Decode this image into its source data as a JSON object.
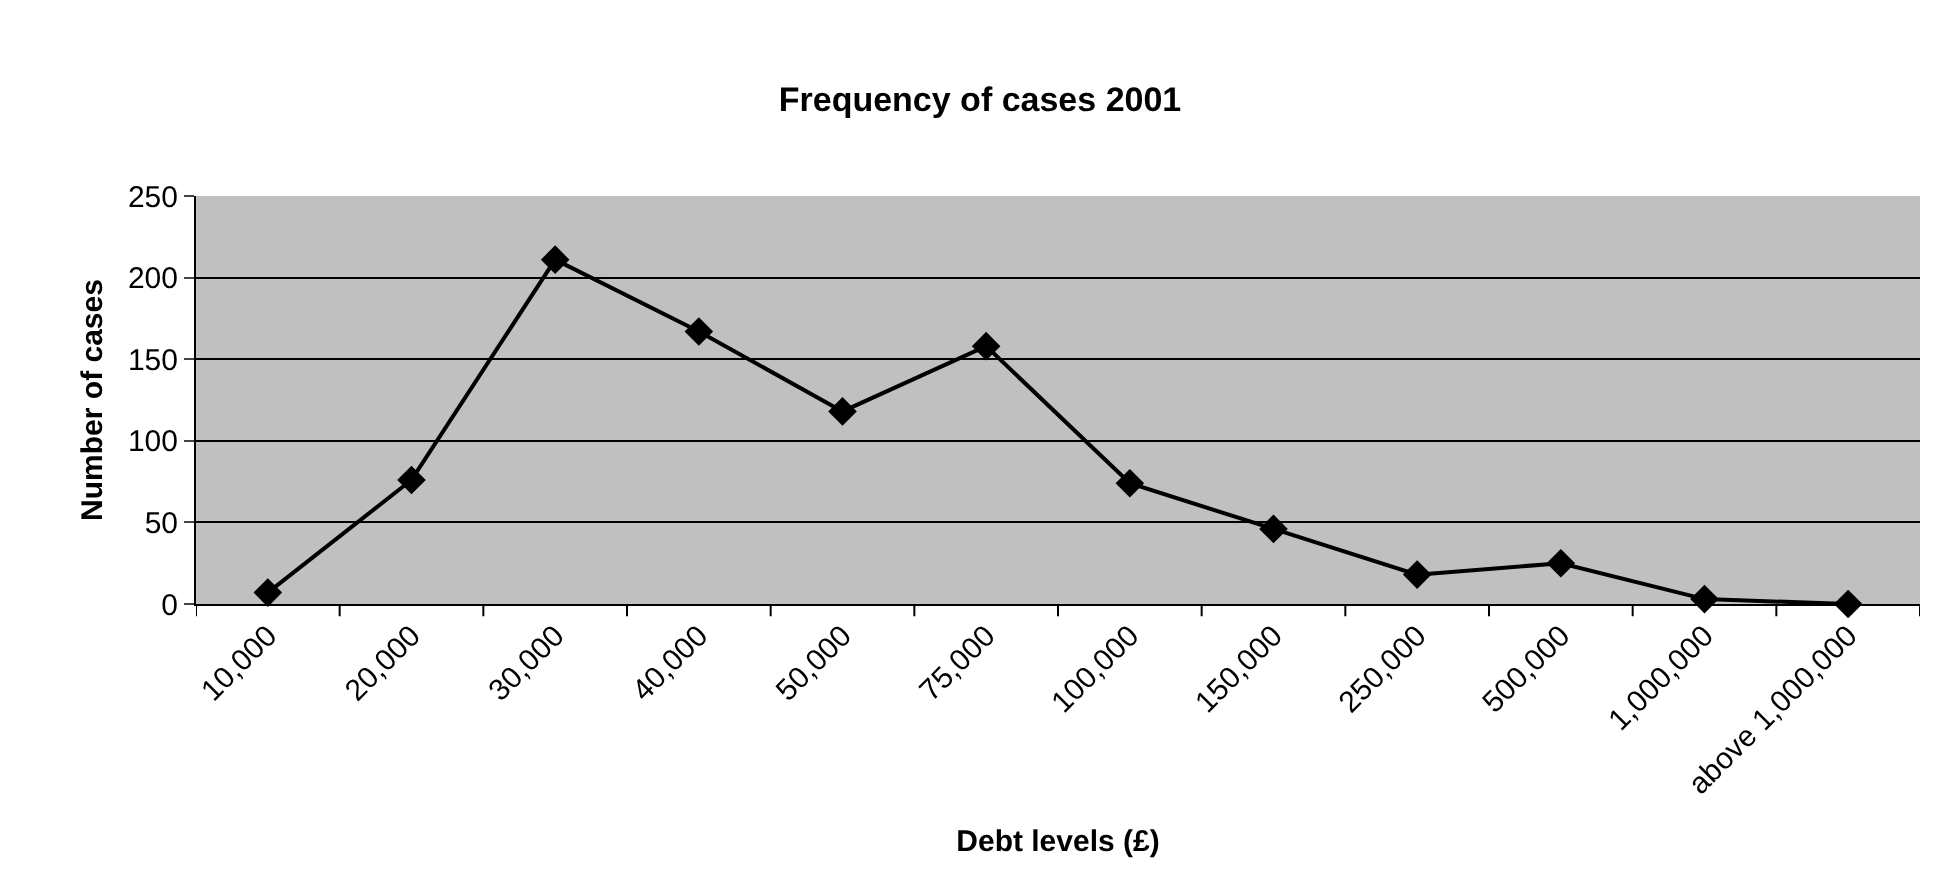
{
  "chart_data": {
    "type": "line",
    "title": "Frequency of cases 2001",
    "xlabel": "Debt levels (£)",
    "ylabel": "Number of cases",
    "categories": [
      "10,000",
      "20,000",
      "30,000",
      "40,000",
      "50,000",
      "75,000",
      "100,000",
      "150,000",
      "250,000",
      "500,000",
      "1,000,000",
      "above 1,000,000"
    ],
    "series": [
      {
        "color": "#000000",
        "values": [
          7,
          76,
          211,
          167,
          118,
          158,
          74,
          46,
          18,
          25,
          3,
          0
        ]
      }
    ],
    "ylim": [
      0,
      250
    ],
    "yticks": [
      0,
      50,
      100,
      150,
      200,
      250
    ],
    "grid": "y",
    "legend": false,
    "marker": "diamond",
    "line_style": "solid"
  }
}
